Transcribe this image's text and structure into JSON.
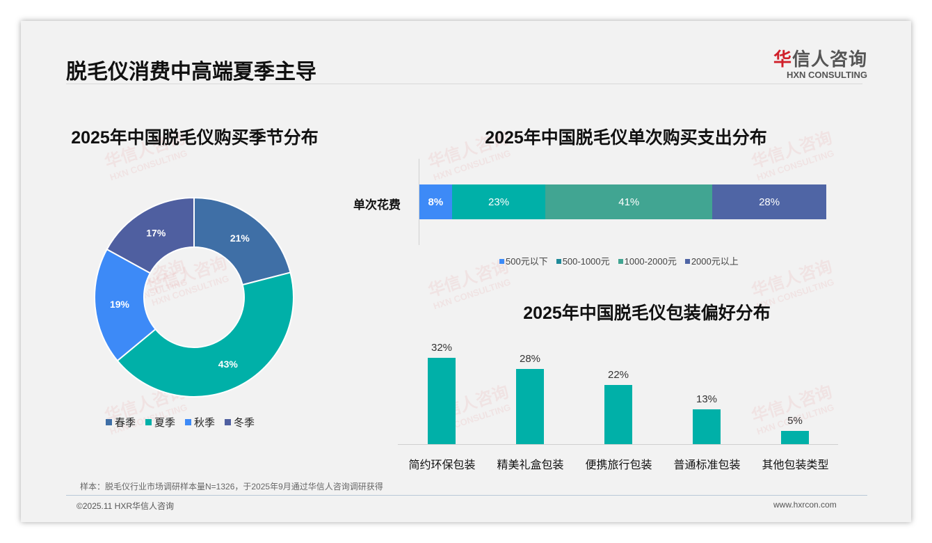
{
  "header": {
    "title": "脱毛仪消费中高端夏季主导",
    "logo_cn_red": "华",
    "logo_cn": "信人咨询",
    "logo_en": "HXN CONSULTING"
  },
  "watermark": {
    "cn": "华信人咨询",
    "en": "HXN CONSULTING"
  },
  "chart_data": [
    {
      "type": "pie",
      "title": "2025年中国脱毛仪购买季节分布",
      "donut": true,
      "categories": [
        "春季",
        "夏季",
        "秋季",
        "冬季"
      ],
      "values": [
        21,
        43,
        19,
        17
      ],
      "labels": [
        "21%",
        "43%",
        "19%",
        "17%"
      ],
      "colors": [
        "#3f6fa6",
        "#00b0a8",
        "#3d8af7",
        "#4f5fa0"
      ],
      "legend": "bottom"
    },
    {
      "type": "bar",
      "stacked": true,
      "orientation": "horizontal",
      "title": "2025年中国脱毛仪单次购买支出分布",
      "categories": [
        "单次花费"
      ],
      "series": [
        {
          "name": "500元以下",
          "values": [
            8
          ],
          "label": "8%",
          "color": "#3d8af7",
          "legend_color": "#3d8af7"
        },
        {
          "name": "500-1000元",
          "values": [
            23
          ],
          "label": "23%",
          "color": "#00b0a8",
          "legend_color": "#1f8a99"
        },
        {
          "name": "1000-2000元",
          "values": [
            41
          ],
          "label": "41%",
          "color": "#41a592",
          "legend_color": "#41a592"
        },
        {
          "name": "2000元以上",
          "values": [
            28
          ],
          "label": "28%",
          "color": "#4f65a5",
          "legend_color": "#4f65a5"
        }
      ],
      "legend": "bottom"
    },
    {
      "type": "bar",
      "title": "2025年中国脱毛仪包装偏好分布",
      "categories": [
        "简约环保包装",
        "精美礼盒包装",
        "便携旅行包装",
        "普通标准包装",
        "其他包装类型"
      ],
      "values": [
        32,
        28,
        22,
        13,
        5
      ],
      "labels": [
        "32%",
        "28%",
        "22%",
        "13%",
        "5%"
      ],
      "color": "#00b0a8",
      "ylim": [
        0,
        35
      ]
    }
  ],
  "footer": {
    "note": "样本：脱毛仪行业市场调研样本量N=1326，于2025年9月通过华信人咨询调研获得",
    "copyright": "©2025.11 HXR华信人咨询",
    "url": "www.hxrcon.com"
  }
}
